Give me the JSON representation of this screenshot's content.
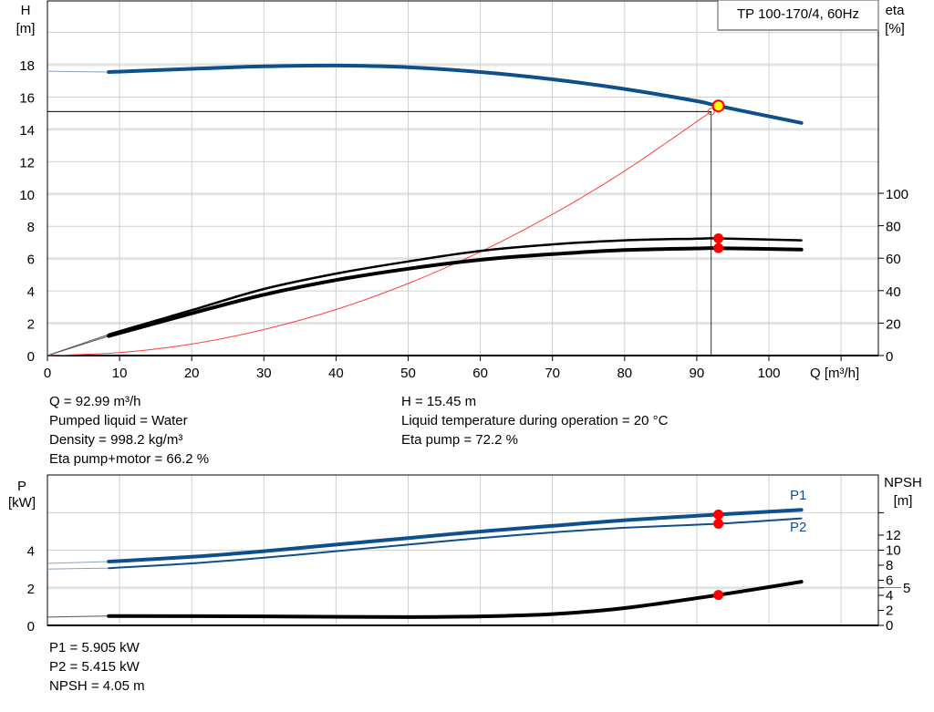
{
  "chart_data": [
    {
      "type": "line",
      "title": "TP 100-170/4, 60Hz",
      "xlabel": "Q [m³/h]",
      "ylabel": "H\n[m]",
      "y2label": "eta\n[%]",
      "xlim": [
        0,
        115
      ],
      "ylim": [
        0,
        20
      ],
      "y2lim": [
        0,
        100
      ],
      "xticks": [
        0,
        10,
        20,
        30,
        40,
        50,
        60,
        70,
        80,
        90,
        100
      ],
      "yticks": [
        0,
        2,
        4,
        6,
        8,
        10,
        12,
        14,
        16,
        18
      ],
      "y2ticks": [
        0,
        20,
        40,
        60,
        80,
        100
      ],
      "grid": true,
      "series": [
        {
          "id": "H",
          "axis": "left",
          "color": "#0f4f8a",
          "x": [
            0,
            8.5,
            20,
            30,
            40,
            50,
            60,
            70,
            80,
            90,
            93,
            104.5
          ],
          "y": [
            17.6,
            17.55,
            17.75,
            17.9,
            17.95,
            17.85,
            17.55,
            17.1,
            16.5,
            15.75,
            15.45,
            14.4
          ]
        },
        {
          "id": "eta-pump",
          "axis": "right",
          "color": "#000000",
          "x": [
            0,
            8.5,
            20,
            30,
            40,
            50,
            60,
            70,
            80,
            90,
            93,
            104.5
          ],
          "y": [
            0,
            13,
            28,
            41,
            50.5,
            58,
            64.5,
            68.5,
            71,
            72,
            72.2,
            71
          ]
        },
        {
          "id": "eta-pump-motor",
          "axis": "right",
          "color": "#000000",
          "x": [
            0,
            8.5,
            20,
            30,
            40,
            50,
            60,
            70,
            80,
            90,
            93,
            104.5
          ],
          "y": [
            0,
            12,
            26,
            37.5,
            46.5,
            53.5,
            59,
            62.5,
            65,
            66,
            66.2,
            65.3
          ]
        },
        {
          "id": "system-curve",
          "axis": "left",
          "color": "#ff4040",
          "x": [
            0,
            10,
            20,
            30,
            40,
            50,
            60,
            70,
            80,
            92
          ],
          "y": [
            0,
            0.18,
            0.71,
            1.61,
            2.85,
            4.46,
            6.42,
            8.74,
            11.42,
            15.1
          ]
        }
      ],
      "operating_point": {
        "Q": 93,
        "H": 15.45
      },
      "required_point": {
        "Q": 92,
        "H": 15.1
      }
    },
    {
      "type": "line",
      "ylabel": "P\n[kW]",
      "y2label": "NPSH\n[m]",
      "xlim": [
        0,
        115
      ],
      "ylim": [
        0,
        8
      ],
      "y2lim": [
        0,
        20
      ],
      "yticks": [
        0,
        2,
        4
      ],
      "y2ticks": [
        0,
        2,
        4,
        5,
        6,
        8,
        10,
        12
      ],
      "grid": true,
      "series": [
        {
          "name": "P1",
          "axis": "left",
          "color": "#0f4f8a",
          "x": [
            0,
            8.5,
            20,
            30,
            40,
            50,
            60,
            70,
            80,
            93,
            104.5
          ],
          "y": [
            3.3,
            3.4,
            3.65,
            3.95,
            4.3,
            4.65,
            5.0,
            5.3,
            5.6,
            5.905,
            6.15
          ]
        },
        {
          "name": "P2",
          "axis": "left",
          "color": "#0f4f8a",
          "x": [
            0,
            8.5,
            20,
            30,
            40,
            50,
            60,
            70,
            80,
            93,
            104.5
          ],
          "y": [
            3.0,
            3.05,
            3.3,
            3.6,
            3.95,
            4.3,
            4.65,
            4.95,
            5.2,
            5.415,
            5.7
          ]
        },
        {
          "id": "NPSH",
          "axis": "right",
          "color": "#000000",
          "x": [
            0,
            8.5,
            30,
            50,
            60,
            70,
            80,
            93,
            104.5
          ],
          "y": [
            1.1,
            1.25,
            1.2,
            1.1,
            1.2,
            1.5,
            2.3,
            4.05,
            5.8
          ]
        }
      ],
      "operating_Q": 93
    }
  ],
  "info_top_left": [
    "Q = 92.99 m³/h",
    "Pumped liquid = Water",
    "Density = 998.2 kg/m³",
    "Eta pump+motor = 66.2 %"
  ],
  "info_top_right": [
    "H = 15.45 m",
    "Liquid temperature during operation = 20 °C",
    "Eta pump = 72.2 %"
  ],
  "info_bottom": [
    "P1 = 5.905 kW",
    "P2 = 5.415 kW",
    "NPSH = 4.05 m"
  ]
}
